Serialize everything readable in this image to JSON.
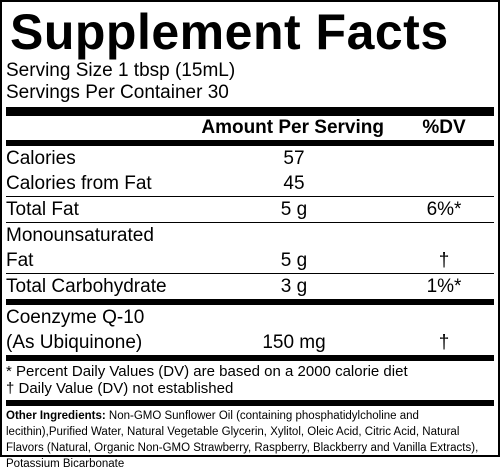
{
  "header": {
    "title": "Supplement Facts"
  },
  "serving": {
    "size": "Serving Size 1 tbsp (15mL)",
    "per_container": "Servings Per Container 30"
  },
  "table": {
    "columns": [
      "Amount Per Serving",
      "%DV"
    ],
    "rows": [
      {
        "name": [
          "Calories"
        ],
        "amount": "57",
        "dv": ""
      },
      {
        "name": [
          "Calories from Fat"
        ],
        "amount": "45",
        "dv": ""
      },
      {
        "name": [
          "Total Fat"
        ],
        "amount": "5 g",
        "dv": "6%*"
      },
      {
        "name": [
          "Monounsaturated",
          "Fat"
        ],
        "amount": "5 g",
        "dv": "†"
      },
      {
        "name": [
          "Total Carbohydrate"
        ],
        "amount": "3 g",
        "dv": "1%*"
      },
      {
        "name": [
          "Coenzyme Q-10",
          "(As Ubiquinone)"
        ],
        "amount": "150 mg",
        "dv": "†"
      }
    ]
  },
  "footnotes": [
    "* Percent Daily Values (DV) are based on a 2000 calorie diet",
    "† Daily Value (DV) not established"
  ],
  "other_ingredients": {
    "label": "Other Ingredients:",
    "text": "Non-GMO Sunflower Oil (containing phosphatidylcholine and lecithin),Purified Water, Natural Vegetable Glycerin, Xylitol, Oleic Acid, Citric Acid, Natural Flavors (Natural, Organic Non-GMO Strawberry, Raspberry, Blackberry and Vanilla Extracts), Potassium Bicarbonate"
  }
}
